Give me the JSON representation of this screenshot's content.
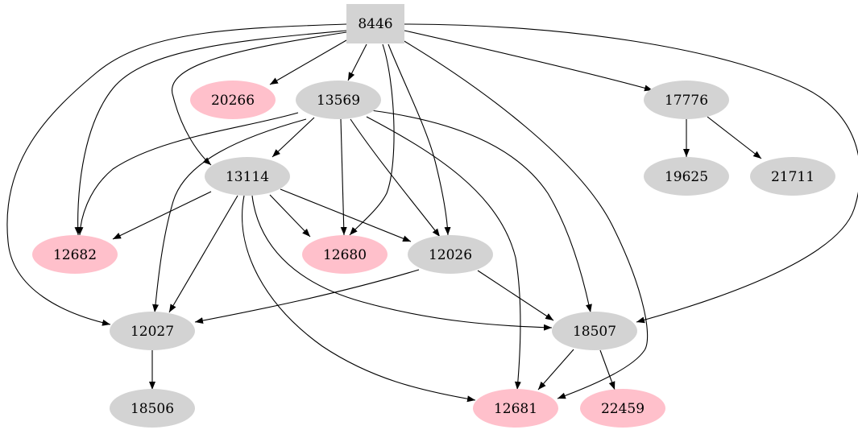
{
  "colors": {
    "gray": "#d3d3d3",
    "pink": "#ffc0cb",
    "edge": "#000000"
  },
  "nodes": [
    {
      "id": "8446",
      "shape": "box",
      "color": "gray"
    },
    {
      "id": "20266",
      "shape": "ellipse",
      "color": "pink"
    },
    {
      "id": "13569",
      "shape": "ellipse",
      "color": "gray"
    },
    {
      "id": "17776",
      "shape": "ellipse",
      "color": "gray"
    },
    {
      "id": "13114",
      "shape": "ellipse",
      "color": "gray"
    },
    {
      "id": "19625",
      "shape": "ellipse",
      "color": "gray"
    },
    {
      "id": "21711",
      "shape": "ellipse",
      "color": "gray"
    },
    {
      "id": "12682",
      "shape": "ellipse",
      "color": "pink"
    },
    {
      "id": "12680",
      "shape": "ellipse",
      "color": "pink"
    },
    {
      "id": "12026",
      "shape": "ellipse",
      "color": "gray"
    },
    {
      "id": "12027",
      "shape": "ellipse",
      "color": "gray"
    },
    {
      "id": "18507",
      "shape": "ellipse",
      "color": "gray"
    },
    {
      "id": "18506",
      "shape": "ellipse",
      "color": "gray"
    },
    {
      "id": "12681",
      "shape": "ellipse",
      "color": "pink"
    },
    {
      "id": "22459",
      "shape": "ellipse",
      "color": "pink"
    }
  ],
  "edges": [
    [
      "8446",
      "20266"
    ],
    [
      "8446",
      "13569"
    ],
    [
      "8446",
      "17776"
    ],
    [
      "8446",
      "13114"
    ],
    [
      "8446",
      "12682"
    ],
    [
      "8446",
      "12027"
    ],
    [
      "8446",
      "12680"
    ],
    [
      "8446",
      "12026"
    ],
    [
      "8446",
      "12681"
    ],
    [
      "8446",
      "18507"
    ],
    [
      "13569",
      "13114"
    ],
    [
      "13569",
      "12682"
    ],
    [
      "13569",
      "12027"
    ],
    [
      "13569",
      "12680"
    ],
    [
      "13569",
      "12026"
    ],
    [
      "13569",
      "12681"
    ],
    [
      "13569",
      "18507"
    ],
    [
      "17776",
      "19625"
    ],
    [
      "17776",
      "21711"
    ],
    [
      "13114",
      "12682"
    ],
    [
      "13114",
      "12680"
    ],
    [
      "13114",
      "12026"
    ],
    [
      "13114",
      "12027"
    ],
    [
      "13114",
      "18507"
    ],
    [
      "13114",
      "12681"
    ],
    [
      "12026",
      "12027"
    ],
    [
      "12026",
      "18507"
    ],
    [
      "12027",
      "18506"
    ],
    [
      "18507",
      "12681"
    ],
    [
      "18507",
      "22459"
    ]
  ]
}
